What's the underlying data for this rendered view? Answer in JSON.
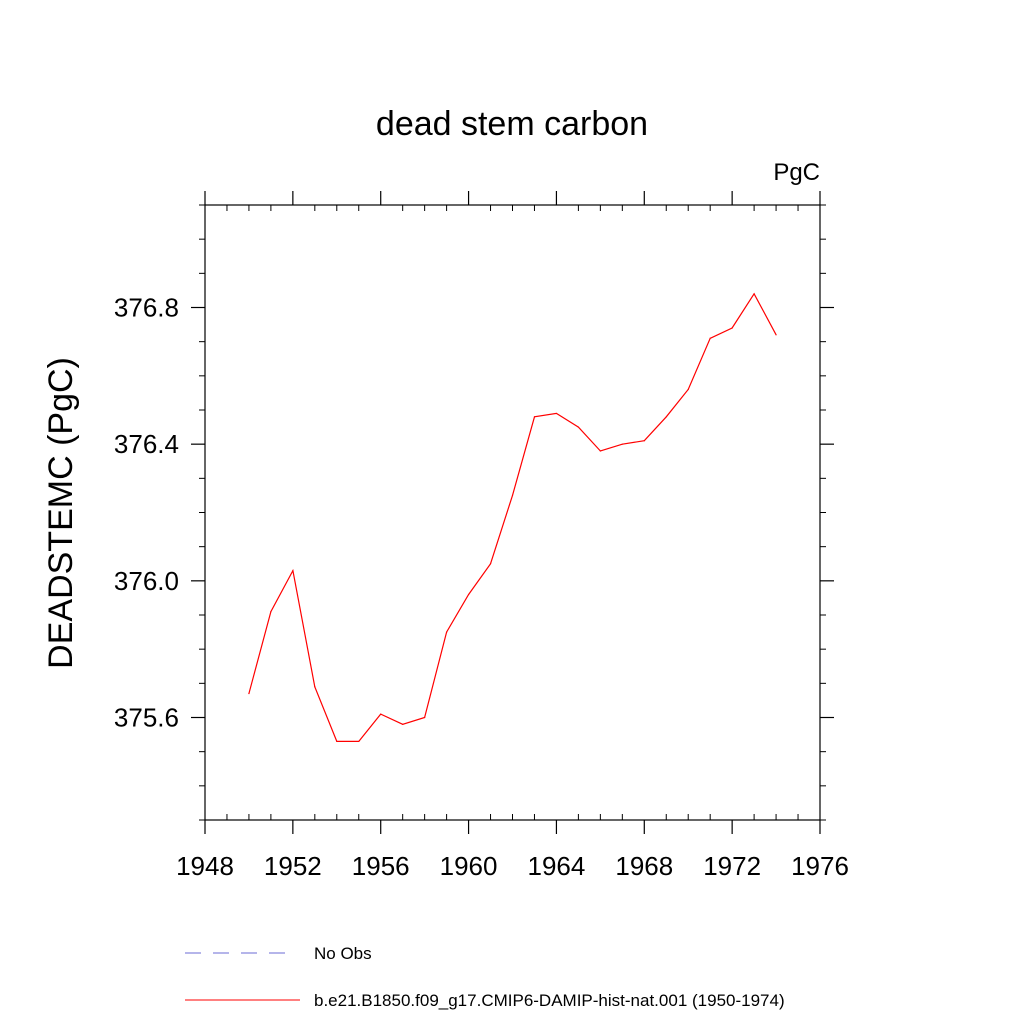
{
  "chart_data": {
    "type": "line",
    "title": "dead stem carbon",
    "units_label": "PgC",
    "ylabel": "DEADSTEMC  (PgC)",
    "xlabel": "",
    "xlim": [
      1948,
      1976
    ],
    "ylim": [
      375.3,
      377.1
    ],
    "x_ticks": [
      1948,
      1952,
      1956,
      1960,
      1964,
      1968,
      1972,
      1976
    ],
    "x_tick_labels": [
      "1948",
      "1952",
      "1956",
      "1960",
      "1964",
      "1968",
      "1972",
      "1976"
    ],
    "y_ticks": [
      375.6,
      376.0,
      376.4,
      376.8
    ],
    "y_tick_labels": [
      "375.6",
      "376.0",
      "376.4",
      "376.8"
    ],
    "grid": false,
    "legend_position": "bottom",
    "series": [
      {
        "name": "b.e21.B1850.f09_g17.CMIP6-DAMIP-hist-nat.001 (1950-1974)",
        "color": "#ff0000",
        "style": "solid",
        "x": [
          1950,
          1951,
          1952,
          1953,
          1954,
          1955,
          1956,
          1957,
          1958,
          1959,
          1960,
          1961,
          1962,
          1963,
          1964,
          1965,
          1966,
          1967,
          1968,
          1969,
          1970,
          1971,
          1972,
          1973,
          1974
        ],
        "values": [
          375.67,
          375.91,
          376.03,
          375.69,
          375.53,
          375.53,
          375.61,
          375.58,
          375.6,
          375.85,
          375.96,
          376.05,
          376.25,
          376.48,
          376.49,
          376.45,
          376.38,
          376.4,
          376.41,
          376.48,
          376.56,
          376.71,
          376.74,
          376.84,
          376.72
        ]
      }
    ],
    "legend": [
      {
        "label": "No Obs",
        "color": "#6b6bd6",
        "style": "dashed"
      },
      {
        "label": "b.e21.B1850.f09_g17.CMIP6-DAMIP-hist-nat.001 (1950-1974)",
        "color": "#ff0000",
        "style": "solid"
      }
    ]
  }
}
